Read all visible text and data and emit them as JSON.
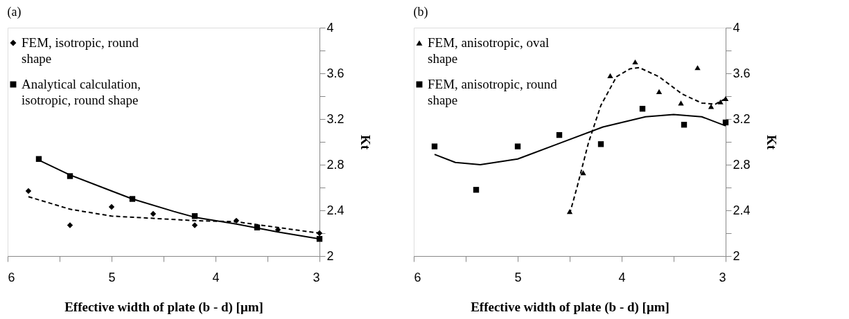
{
  "chart_data": [
    {
      "type": "scatter",
      "title": "(a)",
      "xlabel": "Effective width of plate (b - d) [μm]",
      "ylabel": "Kt",
      "xlim": [
        6,
        3
      ],
      "xticks": [
        6,
        {
          "value": 5.5,
          "label": null
        },
        5,
        {
          "value": 4.5,
          "label": null
        },
        4,
        {
          "value": 3.5,
          "label": null
        },
        3
      ],
      "ylim": [
        2,
        4
      ],
      "yticks": [
        2,
        {
          "value": 2.2,
          "label": null
        },
        2.4,
        {
          "value": 2.6,
          "label": null
        },
        2.8,
        {
          "value": 3.0,
          "label": null
        },
        3.2,
        {
          "value": 3.4,
          "label": null
        },
        3.6,
        {
          "value": 3.8,
          "label": null
        },
        4
      ],
      "grid": false,
      "legend": "top left",
      "series": [
        {
          "name": "FEM, isotropic, round shape",
          "color": "#000000",
          "marker": "diamond",
          "x": [
            5.8,
            5.4,
            5.0,
            4.6,
            4.2,
            3.8,
            3.4,
            3.0
          ],
          "values": [
            2.57,
            2.27,
            2.43,
            2.37,
            2.27,
            2.31,
            2.23,
            2.2
          ]
        },
        {
          "name": "Analytical calculation, isotropic, round shape",
          "color": "#000000",
          "marker": "square",
          "x": [
            5.7,
            5.4,
            4.8,
            4.2,
            3.6,
            3.0
          ],
          "values": [
            2.85,
            2.7,
            2.5,
            2.35,
            2.25,
            2.15
          ]
        },
        {
          "type": "line",
          "color": "#000000",
          "line_style": "dashed",
          "x": [
            5.8,
            5.4,
            5.0,
            4.6,
            4.2,
            3.8,
            3.4,
            3.0
          ],
          "values": [
            2.52,
            2.41,
            2.35,
            2.33,
            2.31,
            2.3,
            2.25,
            2.2
          ]
        },
        {
          "type": "line",
          "color": "#000000",
          "line_style": "solid",
          "x": [
            5.7,
            5.4,
            5.0,
            4.8,
            4.4,
            4.2,
            3.8,
            3.4,
            3.0
          ],
          "values": [
            2.84,
            2.71,
            2.57,
            2.5,
            2.39,
            2.34,
            2.28,
            2.21,
            2.15
          ]
        }
      ]
    },
    {
      "type": "scatter",
      "title": "(b)",
      "xlabel": "Effective width of plate (b - d) [μm]",
      "ylabel": "Kt",
      "xlim": [
        6,
        3
      ],
      "xticks": [
        6,
        {
          "value": 5.5,
          "label": null
        },
        5,
        {
          "value": 4.5,
          "label": null
        },
        4,
        {
          "value": 3.5,
          "label": null
        },
        3
      ],
      "ylim": [
        2,
        4
      ],
      "yticks": [
        2,
        {
          "value": 2.2,
          "label": null
        },
        2.4,
        {
          "value": 2.6,
          "label": null
        },
        2.8,
        {
          "value": 3.0,
          "label": null
        },
        3.2,
        {
          "value": 3.4,
          "label": null
        },
        3.6,
        {
          "value": 3.8,
          "label": null
        },
        4
      ],
      "grid": false,
      "legend": "top left",
      "series": [
        {
          "name": "FEM, anisotropic, oval shape",
          "color": "#000000",
          "marker": "triangle",
          "x": [
            4.5,
            4.37,
            4.11,
            3.87,
            3.64,
            3.43,
            3.27,
            3.14,
            3.05,
            3.0
          ],
          "values": [
            2.39,
            2.73,
            3.58,
            3.7,
            3.44,
            3.34,
            3.65,
            3.31,
            3.35,
            3.38
          ]
        },
        {
          "name": "FEM, anisotropic, round shape",
          "color": "#000000",
          "marker": "square",
          "x": [
            5.8,
            5.4,
            5.0,
            4.6,
            4.2,
            3.8,
            3.4,
            3.0
          ],
          "values": [
            2.96,
            2.58,
            2.96,
            3.06,
            2.98,
            3.29,
            3.15,
            3.17
          ]
        },
        {
          "type": "line",
          "color": "#000000",
          "line_style": "dashed",
          "x": [
            4.5,
            4.43,
            4.32,
            4.2,
            4.05,
            3.92,
            3.83,
            3.64,
            3.42,
            3.23,
            3.1,
            3.0
          ],
          "values": [
            2.37,
            2.6,
            2.99,
            3.32,
            3.57,
            3.64,
            3.65,
            3.57,
            3.42,
            3.34,
            3.33,
            3.38
          ]
        },
        {
          "type": "line",
          "color": "#000000",
          "line_style": "solid",
          "x": [
            5.8,
            5.6,
            5.36,
            5.0,
            4.59,
            4.18,
            3.77,
            3.5,
            3.23,
            3.0
          ],
          "values": [
            2.89,
            2.82,
            2.8,
            2.85,
            2.99,
            3.13,
            3.22,
            3.24,
            3.22,
            3.14
          ]
        }
      ]
    }
  ]
}
